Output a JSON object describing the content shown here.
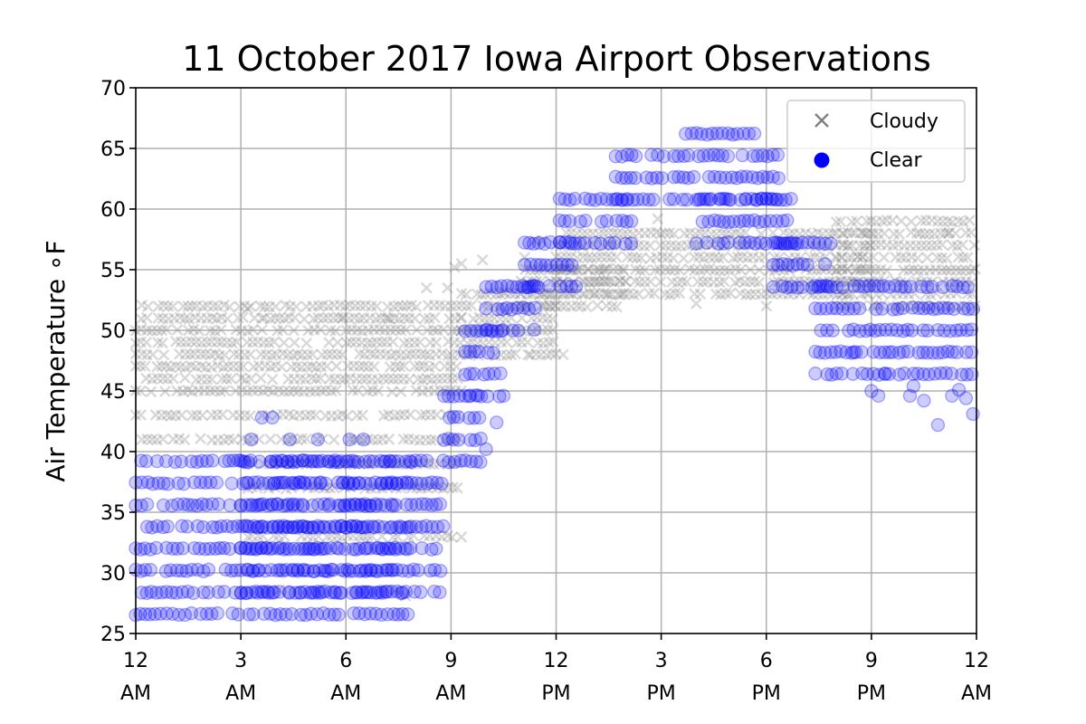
{
  "chart_data": {
    "type": "scatter",
    "title": "11 October 2017 Iowa Airport Observations",
    "xlabel": "",
    "ylabel": "Air Temperature ∘F",
    "xlim": [
      0,
      24
    ],
    "ylim": [
      25,
      70
    ],
    "grid": true,
    "legend_position": "top-right",
    "x_ticks": [
      {
        "value": 0,
        "line1": "12",
        "line2": "AM"
      },
      {
        "value": 3,
        "line1": "3",
        "line2": "AM"
      },
      {
        "value": 6,
        "line1": "6",
        "line2": "AM"
      },
      {
        "value": 9,
        "line1": "9",
        "line2": "AM"
      },
      {
        "value": 12,
        "line1": "12",
        "line2": "PM"
      },
      {
        "value": 15,
        "line1": "3",
        "line2": "PM"
      },
      {
        "value": 18,
        "line1": "6",
        "line2": "PM"
      },
      {
        "value": 21,
        "line1": "9",
        "line2": "PM"
      },
      {
        "value": 24,
        "line1": "12",
        "line2": "AM"
      }
    ],
    "y_ticks": [
      25,
      30,
      35,
      40,
      45,
      50,
      55,
      60,
      65,
      70
    ],
    "series": [
      {
        "name": "Cloudy",
        "marker": "x",
        "color": "#808080",
        "alpha": 0.3,
        "bands": [
          {
            "x_start": 0,
            "x_end": 9.3,
            "y_levels": [
              41,
              43,
              45,
              46,
              47,
              48,
              49,
              50,
              51,
              52
            ]
          },
          {
            "x_start": 3.2,
            "x_end": 9.3,
            "y_levels": [
              39,
              37,
              33
            ]
          },
          {
            "x_start": 9.3,
            "x_end": 12,
            "y_levels": [
              48,
              49,
              50,
              51,
              52,
              53
            ]
          },
          {
            "x_start": 11,
            "x_end": 14,
            "y_levels": [
              52,
              53,
              54,
              55
            ]
          },
          {
            "x_start": 12,
            "x_end": 21,
            "y_levels": [
              53,
              54,
              55,
              56,
              57,
              58
            ]
          },
          {
            "x_start": 20,
            "x_end": 24,
            "y_levels": [
              52,
              53,
              54,
              55,
              56,
              57,
              58,
              59
            ]
          }
        ],
        "points": [
          {
            "x": 3.2,
            "y": 51.8
          },
          {
            "x": 3.6,
            "y": 51
          },
          {
            "x": 5.9,
            "y": 51
          },
          {
            "x": 7.2,
            "y": 51
          },
          {
            "x": 8.3,
            "y": 53.5
          },
          {
            "x": 8.9,
            "y": 53.5
          },
          {
            "x": 9.1,
            "y": 55.2
          },
          {
            "x": 9.3,
            "y": 55.5
          },
          {
            "x": 9.9,
            "y": 55.8
          },
          {
            "x": 10.5,
            "y": 53.1
          },
          {
            "x": 11.1,
            "y": 56
          },
          {
            "x": 11.4,
            "y": 57.4
          },
          {
            "x": 11.6,
            "y": 57.4
          },
          {
            "x": 14.9,
            "y": 59.2
          },
          {
            "x": 18,
            "y": 52
          },
          {
            "x": 16,
            "y": 52.2
          },
          {
            "x": 4.1,
            "y": 28.6
          },
          {
            "x": 7.4,
            "y": 28.6
          },
          {
            "x": 7.7,
            "y": 28.1
          },
          {
            "x": 22.3,
            "y": 58
          },
          {
            "x": 23.2,
            "y": 58
          },
          {
            "x": 11.2,
            "y": 48
          },
          {
            "x": 12.2,
            "y": 48
          }
        ]
      },
      {
        "name": "Clear",
        "marker": "o",
        "color": "#0000ff",
        "alpha": 0.2,
        "bands": [
          {
            "x_start": 0,
            "x_end": 7.9,
            "y_levels": [
              26.6,
              28.4,
              30.2,
              32,
              33.8,
              35.6,
              37.4,
              39.2
            ]
          },
          {
            "x_start": 3,
            "x_end": 8.8,
            "y_levels": [
              39.2,
              37.4,
              35.6,
              33.8,
              32,
              30.2,
              28.4
            ]
          },
          {
            "x_start": 8.8,
            "x_end": 9.9,
            "y_levels": [
              39.2,
              41,
              42.8,
              44.6
            ]
          },
          {
            "x_start": 9.4,
            "x_end": 10.5,
            "y_levels": [
              44.6,
              46.4,
              48.2,
              50
            ]
          },
          {
            "x_start": 10,
            "x_end": 11.5,
            "y_levels": [
              50,
              51.8,
              53.6
            ]
          },
          {
            "x_start": 11.1,
            "x_end": 12.6,
            "y_levels": [
              53.6,
              55.4,
              57.2
            ]
          },
          {
            "x_start": 12.1,
            "x_end": 14.2,
            "y_levels": [
              57.2,
              59,
              60.8
            ]
          },
          {
            "x_start": 13.7,
            "x_end": 18.4,
            "y_levels": [
              60.8,
              62.6,
              64.4
            ]
          },
          {
            "x_start": 15.7,
            "x_end": 17.8,
            "y_levels": [
              66.2
            ]
          },
          {
            "x_start": 16,
            "x_end": 18.9,
            "y_levels": [
              57.2,
              59,
              60.8
            ]
          },
          {
            "x_start": 18.2,
            "x_end": 19.9,
            "y_levels": [
              53.6,
              55.4,
              57.2
            ]
          },
          {
            "x_start": 19.4,
            "x_end": 24,
            "y_levels": [
              46.4,
              48.2,
              50,
              51.8,
              53.6
            ]
          }
        ],
        "points": [
          {
            "x": 3.6,
            "y": 42.8
          },
          {
            "x": 3.9,
            "y": 42.8
          },
          {
            "x": 4.4,
            "y": 41
          },
          {
            "x": 5.2,
            "y": 41
          },
          {
            "x": 6.1,
            "y": 41
          },
          {
            "x": 6.5,
            "y": 41
          },
          {
            "x": 3.3,
            "y": 41
          },
          {
            "x": 21.2,
            "y": 44.6
          },
          {
            "x": 21.4,
            "y": 46.4
          },
          {
            "x": 21.6,
            "y": 48.2
          },
          {
            "x": 20.5,
            "y": 48.2
          },
          {
            "x": 22.1,
            "y": 44.6
          },
          {
            "x": 22.2,
            "y": 45.4
          },
          {
            "x": 22.5,
            "y": 44.2
          },
          {
            "x": 22.9,
            "y": 42.2
          },
          {
            "x": 23.3,
            "y": 44.6
          },
          {
            "x": 23.5,
            "y": 45.1
          },
          {
            "x": 23.7,
            "y": 44.4
          },
          {
            "x": 23.9,
            "y": 43.1
          },
          {
            "x": 21,
            "y": 45
          },
          {
            "x": 10.5,
            "y": 44.6
          },
          {
            "x": 10.3,
            "y": 42.4
          },
          {
            "x": 10,
            "y": 40.2
          }
        ]
      }
    ]
  }
}
